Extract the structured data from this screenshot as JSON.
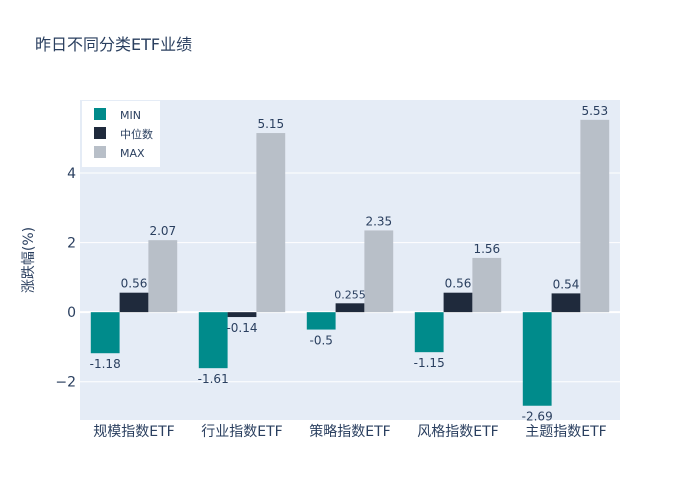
{
  "chart_data": {
    "type": "bar",
    "title": "昨日不同分类ETF业绩",
    "ylabel": "涨跌幅(%)",
    "xlabel": "",
    "categories": [
      "规模指数ETF",
      "行业指数ETF",
      "策略指数ETF",
      "风格指数ETF",
      "主题指数ETF"
    ],
    "series": [
      {
        "name": "MIN",
        "values": [
          -1.18,
          -1.61,
          -0.5,
          -1.15,
          -2.69
        ],
        "color": "#008b8b"
      },
      {
        "name": "中位数",
        "values": [
          0.56,
          -0.14,
          0.255,
          0.56,
          0.54
        ],
        "color": "#1f2a3c"
      },
      {
        "name": "MAX",
        "values": [
          2.07,
          5.15,
          2.35,
          1.56,
          5.53
        ],
        "color": "#b8bfc8"
      }
    ],
    "ylim": [
      -3.1,
      6.1
    ],
    "yticks": [
      -2,
      0,
      2,
      4
    ],
    "ytick_labels": [
      "−2",
      "0",
      "2",
      "4"
    ],
    "grid": true,
    "legend_position": "top-left",
    "plot_bg": "#e5ecf6"
  }
}
